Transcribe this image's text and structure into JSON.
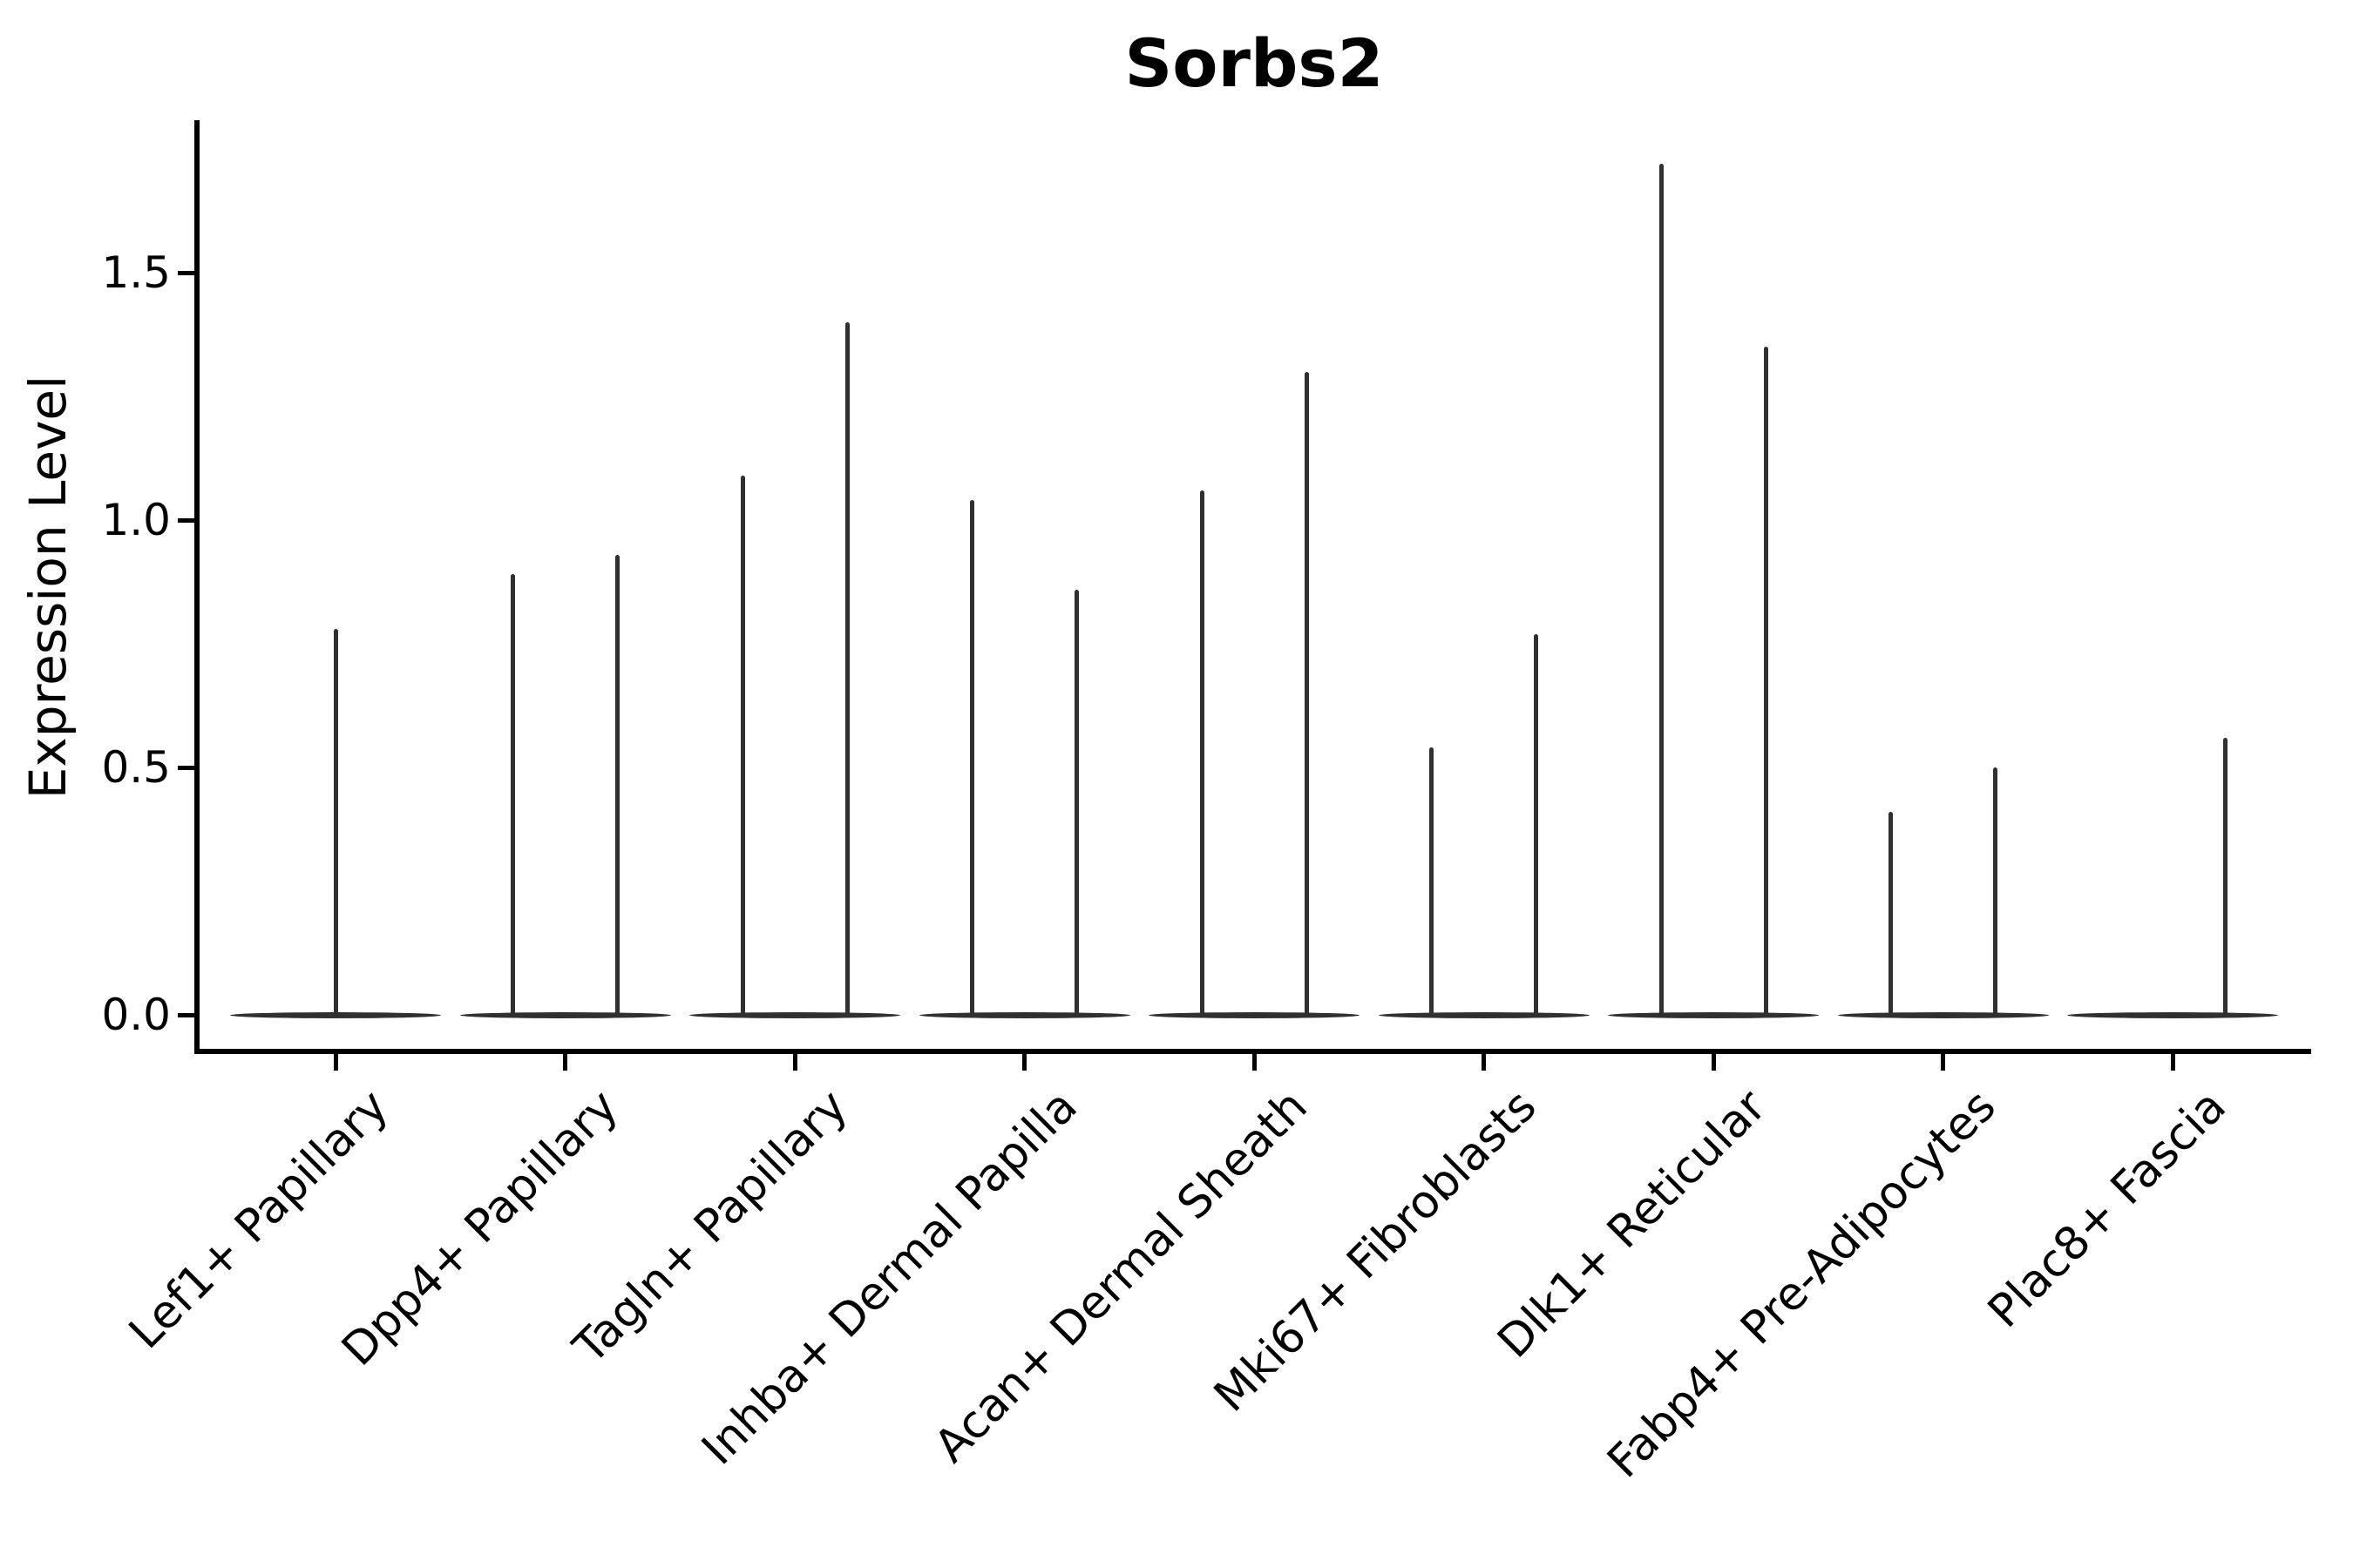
{
  "chart_data": {
    "type": "violin",
    "title": "Sorbs2",
    "ylabel": "Expression Level",
    "xlabel": "",
    "ytick_labels": [
      "0.0",
      "0.5",
      "1.0",
      "1.5"
    ],
    "ytick_values": [
      0.0,
      0.5,
      1.0,
      1.5
    ],
    "ylim": [
      -0.07,
      1.8
    ],
    "grid": false,
    "legend": false,
    "background_color": "#ffffff",
    "axis_color": "#000000",
    "violin_color": "#303030",
    "categories": [
      "Lef1+ Papillary",
      "Dpp4+ Papillary",
      "Tagln+ Papillary",
      "Inhba+ Dermal Papilla",
      "Acan+ Dermal Sheath",
      "Mki67+ Fibroblasts",
      "Dlk1+ Reticular",
      "Fabp4+ Pre-Adipocytes",
      "Plac8+ Fascia"
    ],
    "violins": [
      {
        "category": "Lef1+ Papillary",
        "base_min": 0,
        "spikes": [
          {
            "position": "center",
            "max": 0.78
          }
        ]
      },
      {
        "category": "Dpp4+ Papillary",
        "base_min": 0,
        "spikes": [
          {
            "position": "left",
            "max": 0.89
          },
          {
            "position": "right",
            "max": 0.93
          }
        ]
      },
      {
        "category": "Tagln+ Papillary",
        "base_min": 0,
        "spikes": [
          {
            "position": "left",
            "max": 1.09
          },
          {
            "position": "right",
            "max": 1.4
          }
        ]
      },
      {
        "category": "Inhba+ Dermal Papilla",
        "base_min": 0,
        "spikes": [
          {
            "position": "left",
            "max": 1.04
          },
          {
            "position": "right",
            "max": 0.86
          }
        ]
      },
      {
        "category": "Acan+ Dermal Sheath",
        "base_min": 0,
        "spikes": [
          {
            "position": "left",
            "max": 1.06
          },
          {
            "position": "right",
            "max": 1.3
          }
        ]
      },
      {
        "category": "Mki67+ Fibroblasts",
        "base_min": 0,
        "spikes": [
          {
            "position": "left",
            "max": 0.54
          },
          {
            "position": "right",
            "max": 0.77
          }
        ]
      },
      {
        "category": "Dlk1+ Reticular",
        "base_min": 0,
        "spikes": [
          {
            "position": "left",
            "max": 1.72
          },
          {
            "position": "right",
            "max": 1.35
          }
        ]
      },
      {
        "category": "Fabp4+ Pre-Adipocytes",
        "base_min": 0,
        "spikes": [
          {
            "position": "left",
            "max": 0.41
          },
          {
            "position": "right",
            "max": 0.5
          }
        ]
      },
      {
        "category": "Plac8+ Fascia",
        "base_min": 0,
        "spikes": [
          {
            "position": "right",
            "max": 0.56
          }
        ]
      }
    ]
  }
}
